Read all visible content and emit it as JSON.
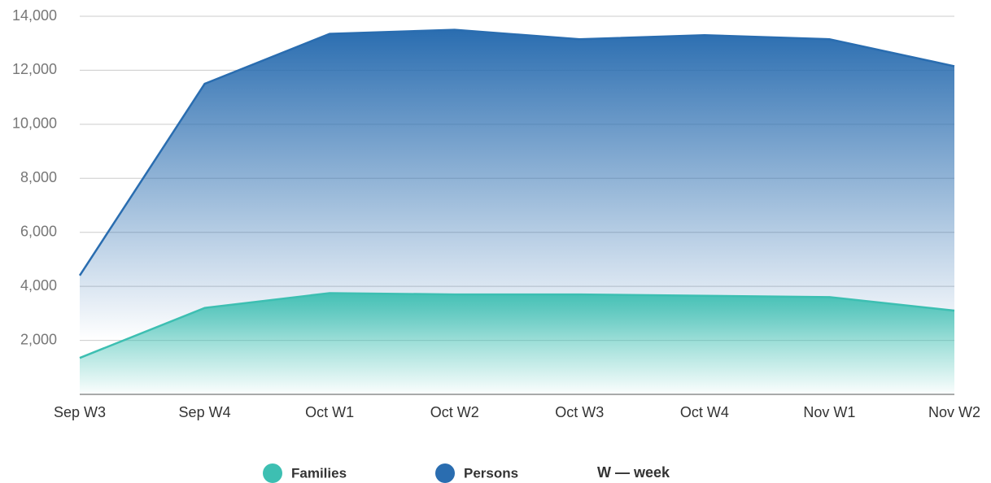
{
  "chart_data": {
    "type": "area",
    "categories": [
      "Sep W3",
      "Sep W4",
      "Oct W1",
      "Oct W2",
      "Oct W3",
      "Oct W4",
      "Nov W1",
      "Nov W2"
    ],
    "series": [
      {
        "name": "Persons",
        "color": "#2a6db0",
        "values": [
          4400,
          11500,
          13350,
          13500,
          13150,
          13300,
          13150,
          12150
        ]
      },
      {
        "name": "Families",
        "color": "#3dbfb2",
        "values": [
          1350,
          3200,
          3750,
          3700,
          3700,
          3650,
          3600,
          3100
        ]
      }
    ],
    "ylim": [
      0,
      14000
    ],
    "yticks": [
      {
        "value": 2000,
        "label": "2,000"
      },
      {
        "value": 4000,
        "label": "4,000"
      },
      {
        "value": 6000,
        "label": "6,000"
      },
      {
        "value": 8000,
        "label": "8,000"
      },
      {
        "value": 10000,
        "label": "10,000"
      },
      {
        "value": 12000,
        "label": "12,000"
      },
      {
        "value": 14000,
        "label": "14,000"
      }
    ],
    "grid": true,
    "note": "W — week"
  }
}
